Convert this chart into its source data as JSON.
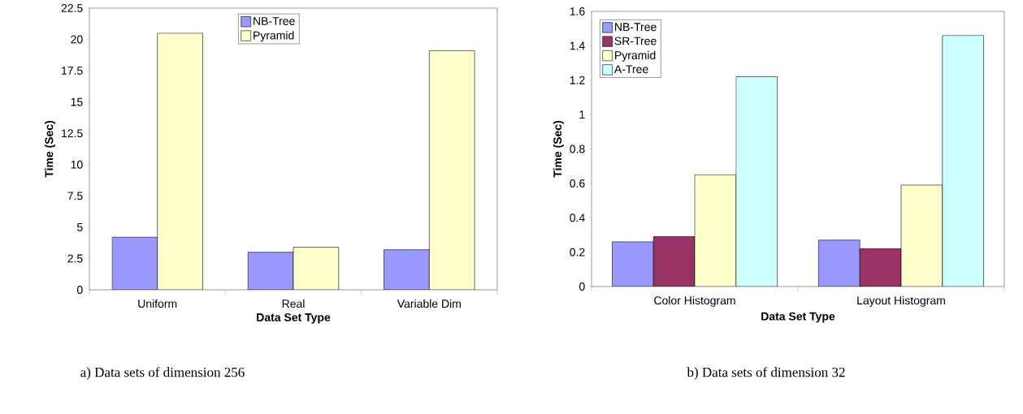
{
  "chart_data": [
    {
      "type": "bar",
      "xlabel": "Data Set Type",
      "ylabel": "Time (Sec)",
      "categories": [
        "Uniform",
        "Real",
        "Variable Dim"
      ],
      "series": [
        {
          "name": "NB-Tree",
          "color": "#9999ff",
          "values": [
            4.2,
            3.0,
            3.2
          ]
        },
        {
          "name": "Pyramid",
          "color": "#ffffcc",
          "values": [
            20.5,
            3.4,
            19.1
          ]
        }
      ],
      "ylim": [
        0,
        22.5
      ],
      "yticks": [
        0,
        2.5,
        5,
        7.5,
        10,
        12.5,
        15,
        17.5,
        20,
        22.5
      ],
      "grid": false,
      "legend": "top",
      "annotations": [
        "a) Data sets of dimension 256"
      ]
    },
    {
      "type": "bar",
      "xlabel": "Data Set Type",
      "ylabel": "Time (Sec)",
      "categories": [
        "Color Histogram",
        "Layout Histogram"
      ],
      "series": [
        {
          "name": "NB-Tree",
          "color": "#9999ff",
          "values": [
            0.26,
            0.27
          ]
        },
        {
          "name": "SR-Tree",
          "color": "#993366",
          "values": [
            0.29,
            0.22
          ]
        },
        {
          "name": "Pyramid",
          "color": "#ffffcc",
          "values": [
            0.65,
            0.59
          ]
        },
        {
          "name": "A-Tree",
          "color": "#ccffff",
          "values": [
            1.22,
            1.46
          ]
        }
      ],
      "ylim": [
        0,
        1.6
      ],
      "yticks": [
        0,
        0.2,
        0.4,
        0.6,
        0.8,
        1,
        1.2,
        1.4,
        1.6
      ],
      "grid": false,
      "legend": "top left",
      "annotations": [
        "b) Data sets of dimension 32"
      ]
    }
  ]
}
